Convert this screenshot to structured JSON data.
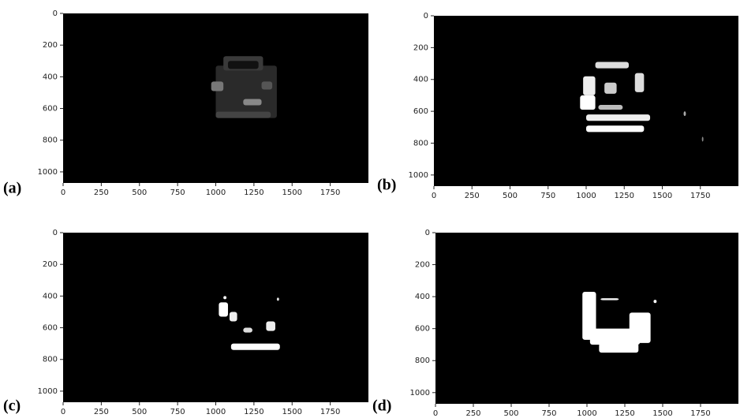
{
  "chart_data": [
    {
      "type": "image",
      "label": "(a)",
      "xlim": [
        0,
        2000
      ],
      "ylim": [
        1070,
        0
      ],
      "xticks": [
        0,
        250,
        500,
        750,
        1000,
        1250,
        1500,
        1750
      ],
      "yticks": [
        0,
        200,
        400,
        600,
        800,
        1000
      ]
    },
    {
      "type": "image",
      "label": "(b)",
      "xlim": [
        0,
        2000
      ],
      "ylim": [
        1070,
        0
      ],
      "xticks": [
        0,
        250,
        500,
        750,
        1000,
        1250,
        1500,
        1750
      ],
      "yticks": [
        0,
        200,
        400,
        600,
        800,
        1000
      ]
    },
    {
      "type": "image",
      "label": "(c)",
      "xlim": [
        0,
        2000
      ],
      "ylim": [
        1070,
        0
      ],
      "xticks": [
        0,
        250,
        500,
        750,
        1000,
        1250,
        1500,
        1750
      ],
      "yticks": [
        0,
        200,
        400,
        600,
        800,
        1000
      ]
    },
    {
      "type": "image",
      "label": "(d)",
      "xlim": [
        0,
        2000
      ],
      "ylim": [
        1070,
        0
      ],
      "xticks": [
        0,
        250,
        500,
        750,
        1000,
        1250,
        1500,
        1750
      ],
      "yticks": [
        0,
        200,
        400,
        600,
        800,
        1000
      ]
    }
  ]
}
